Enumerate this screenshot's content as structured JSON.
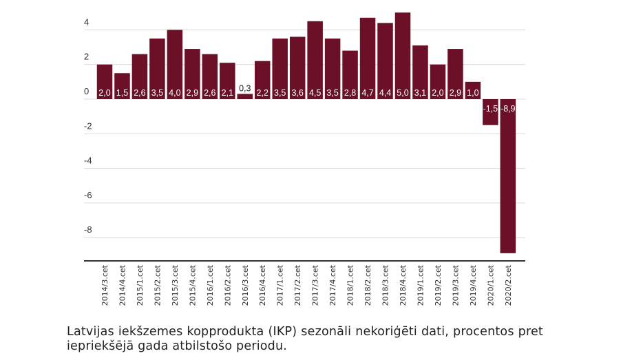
{
  "chart_data": {
    "type": "bar",
    "title": "",
    "xlabel": "",
    "ylabel": "",
    "ylim": [
      -9.3,
      5
    ],
    "yticks": [
      4,
      2,
      0,
      -2,
      -4,
      -6,
      -8
    ],
    "ytick_labels": [
      "4",
      "2",
      "0",
      "-2",
      "-4",
      "-6",
      "-8"
    ],
    "grid": true,
    "bar_color": "#6b1027",
    "categories": [
      "2014/3.cet",
      "2014/4.cet",
      "2015/1.cet",
      "2015/2.cet",
      "2015/3.cet",
      "2015/4.cet",
      "2016/1.cet",
      "2016/2.cet",
      "2016/3.cet",
      "2016/4.cet",
      "2017/1.cet",
      "2017/2.cet",
      "2017/3.cet",
      "2017/4.cet",
      "2018/1.cet",
      "2018/2.cet",
      "2018/3.cet",
      "2018/4.cet",
      "2019/1.cet",
      "2019/2.cet",
      "2019/3.cet",
      "2019/4.cet",
      "2020/1.cet",
      "2020/2.cet"
    ],
    "values": [
      2.0,
      1.5,
      2.6,
      3.5,
      4.0,
      2.9,
      2.6,
      2.1,
      0.3,
      2.2,
      3.5,
      3.6,
      4.5,
      3.5,
      2.8,
      4.7,
      4.4,
      5.0,
      3.1,
      2.0,
      2.9,
      1.0,
      -1.5,
      -8.9
    ],
    "data_labels": [
      "2,0",
      "1,5",
      "2,6",
      "3,5",
      "4,0",
      "2,9",
      "2,6",
      "2,1",
      "0,3",
      "2,2",
      "3,5",
      "3,6",
      "4,5",
      "3,5",
      "2,8",
      "4,7",
      "4,4",
      "5,0",
      "3,1",
      "2,0",
      "2,9",
      "1,0",
      "-1,5",
      "-8,9"
    ]
  },
  "caption": "Latvijas iekšzemes kopprodukta (IKP) sezonāli nekoriģēti dati, procentos pret iepriekšējā gada atbilstošo periodu."
}
